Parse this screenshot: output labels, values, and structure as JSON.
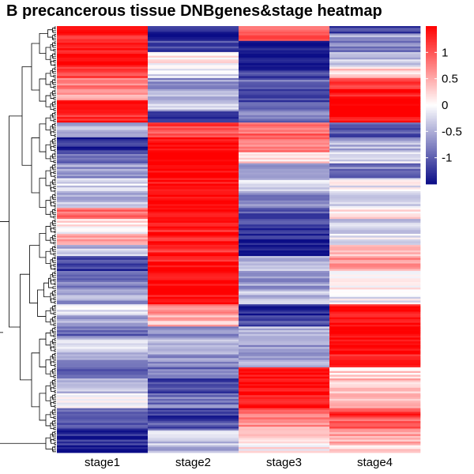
{
  "chart_data": {
    "type": "heatmap",
    "title": "B precancerous tissue DNBgenes&stage heatmap",
    "columns": [
      "stage1",
      "stage2",
      "stage3",
      "stage4"
    ],
    "colorbar": {
      "ticks": [
        1,
        0.5,
        0,
        -0.5,
        -1
      ],
      "tick_labels": [
        "1",
        "0.5",
        "0",
        "-0.5",
        "-1"
      ],
      "range": [
        -1.5,
        1.5
      ],
      "low_color": "#0b0d87",
      "mid_color": "#ffffff",
      "high_color": "#ff0000"
    },
    "row_dendrogram": true,
    "rows": [
      {
        "count": 4,
        "values": [
          1.4,
          -1.2,
          1.0,
          -1.2
        ]
      },
      {
        "count": 4,
        "values": [
          1.3,
          -1.4,
          0.9,
          -0.6
        ]
      },
      {
        "count": 6,
        "values": [
          1.4,
          -1.2,
          -1.4,
          -0.8
        ]
      },
      {
        "count": 8,
        "values": [
          1.5,
          0.1,
          -1.5,
          -0.4
        ]
      },
      {
        "count": 6,
        "values": [
          1.2,
          -0.2,
          -1.2,
          0.2
        ]
      },
      {
        "count": 6,
        "values": [
          0.8,
          -0.6,
          -0.9,
          1.3
        ]
      },
      {
        "count": 6,
        "values": [
          0.6,
          -0.5,
          -1.0,
          1.4
        ]
      },
      {
        "count": 6,
        "values": [
          1.4,
          -0.4,
          -1.1,
          1.5
        ]
      },
      {
        "count": 6,
        "values": [
          1.3,
          -1.2,
          -0.8,
          1.5
        ]
      },
      {
        "count": 8,
        "values": [
          -0.5,
          1.1,
          0.9,
          -1.0
        ]
      },
      {
        "count": 8,
        "values": [
          -1.3,
          1.4,
          0.8,
          -0.5
        ]
      },
      {
        "count": 6,
        "values": [
          -1.0,
          1.5,
          0.3,
          -0.2
        ]
      },
      {
        "count": 8,
        "values": [
          -0.6,
          1.5,
          -0.6,
          -0.8
        ]
      },
      {
        "count": 8,
        "values": [
          -0.2,
          1.5,
          -0.3,
          -0.1
        ]
      },
      {
        "count": 8,
        "values": [
          -0.4,
          1.5,
          -0.7,
          -0.3
        ]
      },
      {
        "count": 6,
        "values": [
          0.9,
          1.4,
          -1.0,
          0.2
        ]
      },
      {
        "count": 8,
        "values": [
          0.1,
          1.3,
          -1.2,
          -0.3
        ]
      },
      {
        "count": 6,
        "values": [
          0.6,
          1.4,
          -1.3,
          -0.1
        ]
      },
      {
        "count": 6,
        "values": [
          -0.4,
          1.3,
          -1.5,
          0.4
        ]
      },
      {
        "count": 8,
        "values": [
          -1.2,
          1.4,
          -0.5,
          0.6
        ]
      },
      {
        "count": 10,
        "values": [
          -0.8,
          1.5,
          -0.6,
          0.1
        ]
      },
      {
        "count": 8,
        "values": [
          -0.6,
          1.5,
          -0.4,
          -0.1
        ]
      },
      {
        "count": 6,
        "values": [
          -0.1,
          0.8,
          -1.3,
          1.4
        ]
      },
      {
        "count": 6,
        "values": [
          -0.6,
          0.4,
          -1.1,
          1.5
        ]
      },
      {
        "count": 6,
        "values": [
          -0.9,
          -0.8,
          -0.4,
          1.5
        ]
      },
      {
        "count": 8,
        "values": [
          -0.3,
          -0.4,
          -0.6,
          1.5
        ]
      },
      {
        "count": 8,
        "values": [
          -0.7,
          -0.6,
          -0.5,
          1.4
        ]
      },
      {
        "count": 6,
        "values": [
          -1.0,
          -0.9,
          1.5,
          0.2
        ]
      },
      {
        "count": 8,
        "values": [
          -0.4,
          -1.2,
          1.5,
          0.4
        ]
      },
      {
        "count": 8,
        "values": [
          -0.1,
          -0.8,
          1.4,
          0.3
        ]
      },
      {
        "count": 6,
        "values": [
          -0.8,
          -1.3,
          0.8,
          1.2
        ]
      },
      {
        "count": 6,
        "values": [
          -1.2,
          -1.0,
          0.6,
          0.9
        ]
      },
      {
        "count": 8,
        "values": [
          -1.3,
          -0.3,
          0.2,
          0.5
        ]
      },
      {
        "count": 4,
        "values": [
          -1.5,
          -0.5,
          0.1,
          0.3
        ]
      }
    ]
  }
}
